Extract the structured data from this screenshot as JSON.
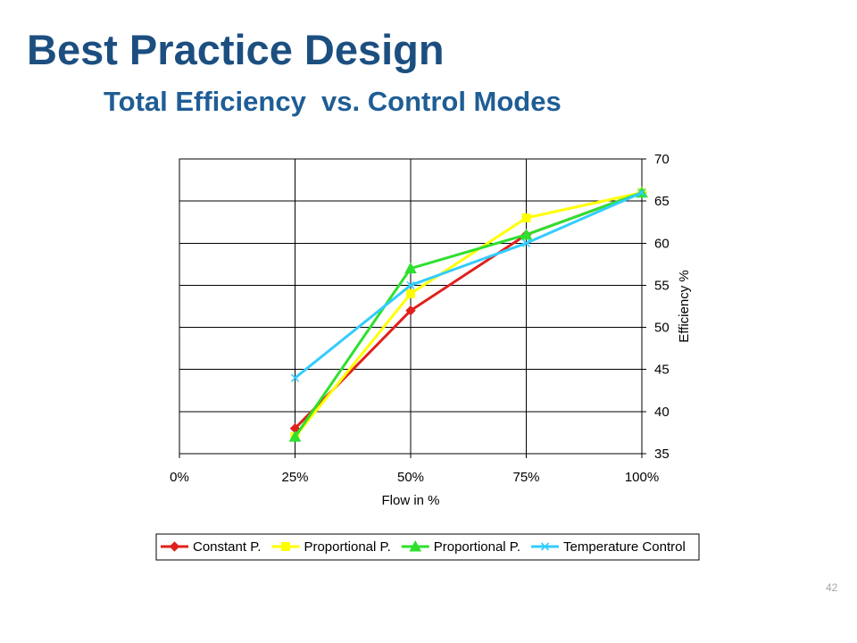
{
  "slide": {
    "title": "Best Practice Design",
    "subtitle": "Total Efficiency  vs. Control Modes",
    "page_number": "42"
  },
  "colors": {
    "title": "#1c4f80",
    "subtitle": "#1f5d95",
    "page_number": "#a6a6a6",
    "grid": "#000000",
    "plot_background": "#ffffff"
  },
  "chart_data": {
    "type": "line",
    "categories": [
      "0%",
      "25%",
      "50%",
      "75%",
      "100%"
    ],
    "xlabel": "Flow in %",
    "ylabel": "Efficiency %",
    "ylim": [
      35,
      70
    ],
    "y_ticks": [
      35,
      40,
      45,
      50,
      55,
      60,
      65,
      70
    ],
    "y_axis_side": "right",
    "grid": true,
    "legend_position": "bottom",
    "series": [
      {
        "name": "Constant P.",
        "color": "#e0201c",
        "marker": "diamond",
        "values": [
          null,
          38,
          52,
          61,
          66
        ]
      },
      {
        "name": "Proportional P.",
        "color": "#ffff00",
        "marker": "square",
        "values": [
          null,
          37,
          54,
          63,
          66
        ]
      },
      {
        "name": "Proportional P.",
        "color": "#2ee02e",
        "marker": "triangle",
        "values": [
          null,
          37,
          57,
          61,
          66
        ]
      },
      {
        "name": "Temperature Control",
        "color": "#33ccff",
        "marker": "x",
        "values": [
          null,
          44,
          55,
          60,
          66
        ]
      }
    ]
  }
}
